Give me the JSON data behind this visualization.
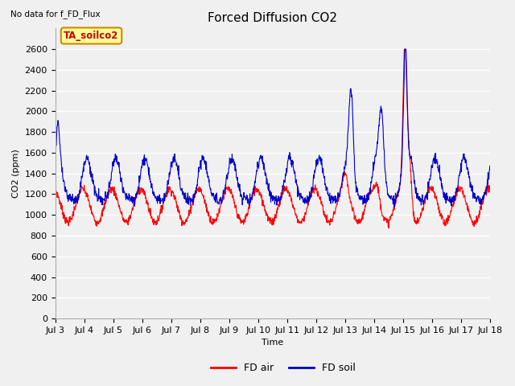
{
  "title": "Forced Diffusion CO2",
  "top_left_text": "No data for f_FD_Flux",
  "annotation_text": "TA_soilco2",
  "xlabel": "Time",
  "ylabel": "CO2 (ppm)",
  "ylim": [
    0,
    2800
  ],
  "yticks": [
    0,
    200,
    400,
    600,
    800,
    1000,
    1200,
    1400,
    1600,
    1800,
    2000,
    2200,
    2400,
    2600
  ],
  "xtick_labels": [
    "Jul 3",
    "Jul 4",
    "Jul 5",
    "Jul 6",
    "Jul 7",
    "Jul 8",
    "Jul 9",
    "Jul 10",
    "Jul 11",
    "Jul 12",
    "Jul 13",
    "Jul 14",
    "Jul 15",
    "Jul 16",
    "Jul 17",
    "Jul 18"
  ],
  "line_color_air": "#ff0000",
  "line_color_soil": "#0000cc",
  "legend_labels": [
    "FD air",
    "FD soil"
  ],
  "plot_bg": "#f0f0f0",
  "fig_bg": "#f0f0f0",
  "annotation_bg": "#ffff99",
  "annotation_border": "#cc8800",
  "annotation_color": "#cc0000",
  "grid_color": "#ffffff",
  "title_fontsize": 11,
  "label_fontsize": 8,
  "ylabel_fontsize": 8
}
